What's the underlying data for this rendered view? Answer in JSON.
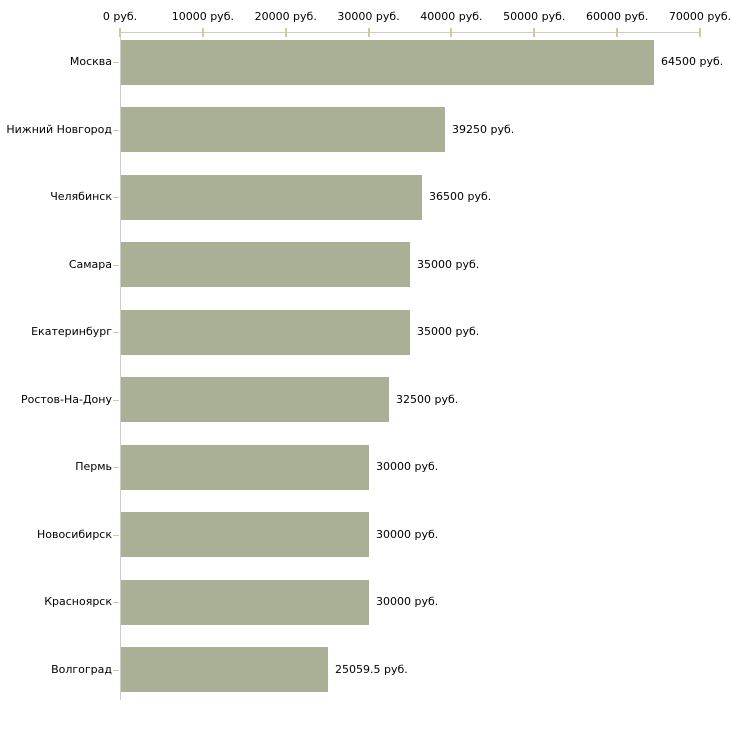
{
  "chart_data": {
    "type": "bar",
    "orientation": "horizontal",
    "title": "",
    "xlabel": "",
    "ylabel": "",
    "unit": "руб.",
    "xlim": [
      0,
      70000
    ],
    "grid": false,
    "legend": null,
    "categories": [
      "Москва",
      "Нижний Новгород",
      "Челябинск",
      "Самара",
      "Екатеринбург",
      "Ростов-На-Дону",
      "Пермь",
      "Новосибирск",
      "Красноярск",
      "Волгоград"
    ],
    "values": [
      64500,
      39250,
      36500,
      35000,
      35000,
      32500,
      30000,
      30000,
      30000,
      25059.5
    ],
    "value_labels": [
      "64500 руб.",
      "39250 руб.",
      "36500 руб.",
      "35000 руб.",
      "35000 руб.",
      "32500 руб.",
      "30000 руб.",
      "30000 руб.",
      "30000 руб.",
      "25059.5 руб."
    ],
    "x_ticks": [
      0,
      10000,
      20000,
      30000,
      40000,
      50000,
      60000,
      70000
    ],
    "x_tick_labels": [
      "0 руб.",
      "10000 руб.",
      "20000 руб.",
      "30000 руб.",
      "40000 руб.",
      "50000 руб.",
      "60000 руб.",
      "70000 руб."
    ],
    "colors": {
      "bar": "#aab096",
      "axis": "#cccccc",
      "tick": "#cccc99",
      "text": "#000000",
      "background": "#ffffff"
    }
  }
}
